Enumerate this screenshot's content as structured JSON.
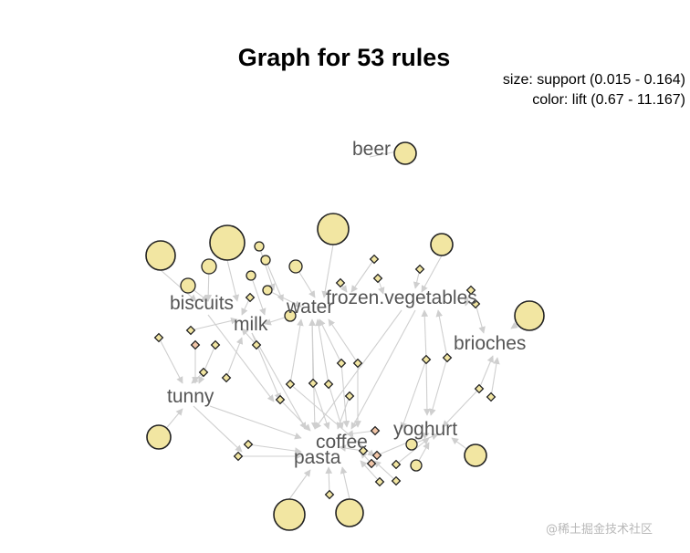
{
  "title": "Graph for 53 rules",
  "legend": {
    "size": "size: support (0.015 - 0.164)",
    "color": "color: lift (0.67 - 11.167)"
  },
  "colors": {
    "node_fill": "#f2e6a2",
    "node_fill_high_lift": "#f2c6a8",
    "edge": "#cfcfcf",
    "label": "#555555"
  },
  "watermark": "@稀土掘金技术社区",
  "items": [
    {
      "id": "beer",
      "label": "beer"
    },
    {
      "id": "biscuits",
      "label": "biscuits"
    },
    {
      "id": "milk",
      "label": "milk"
    },
    {
      "id": "water",
      "label": "water"
    },
    {
      "id": "frozen_vegetables",
      "label": "frozen.vegetables"
    },
    {
      "id": "brioches",
      "label": "brioches"
    },
    {
      "id": "tunny",
      "label": "tunny"
    },
    {
      "id": "coffee",
      "label": "coffee"
    },
    {
      "id": "yoghurt",
      "label": "yoghurt"
    },
    {
      "id": "pasta",
      "label": "pasta"
    }
  ]
}
